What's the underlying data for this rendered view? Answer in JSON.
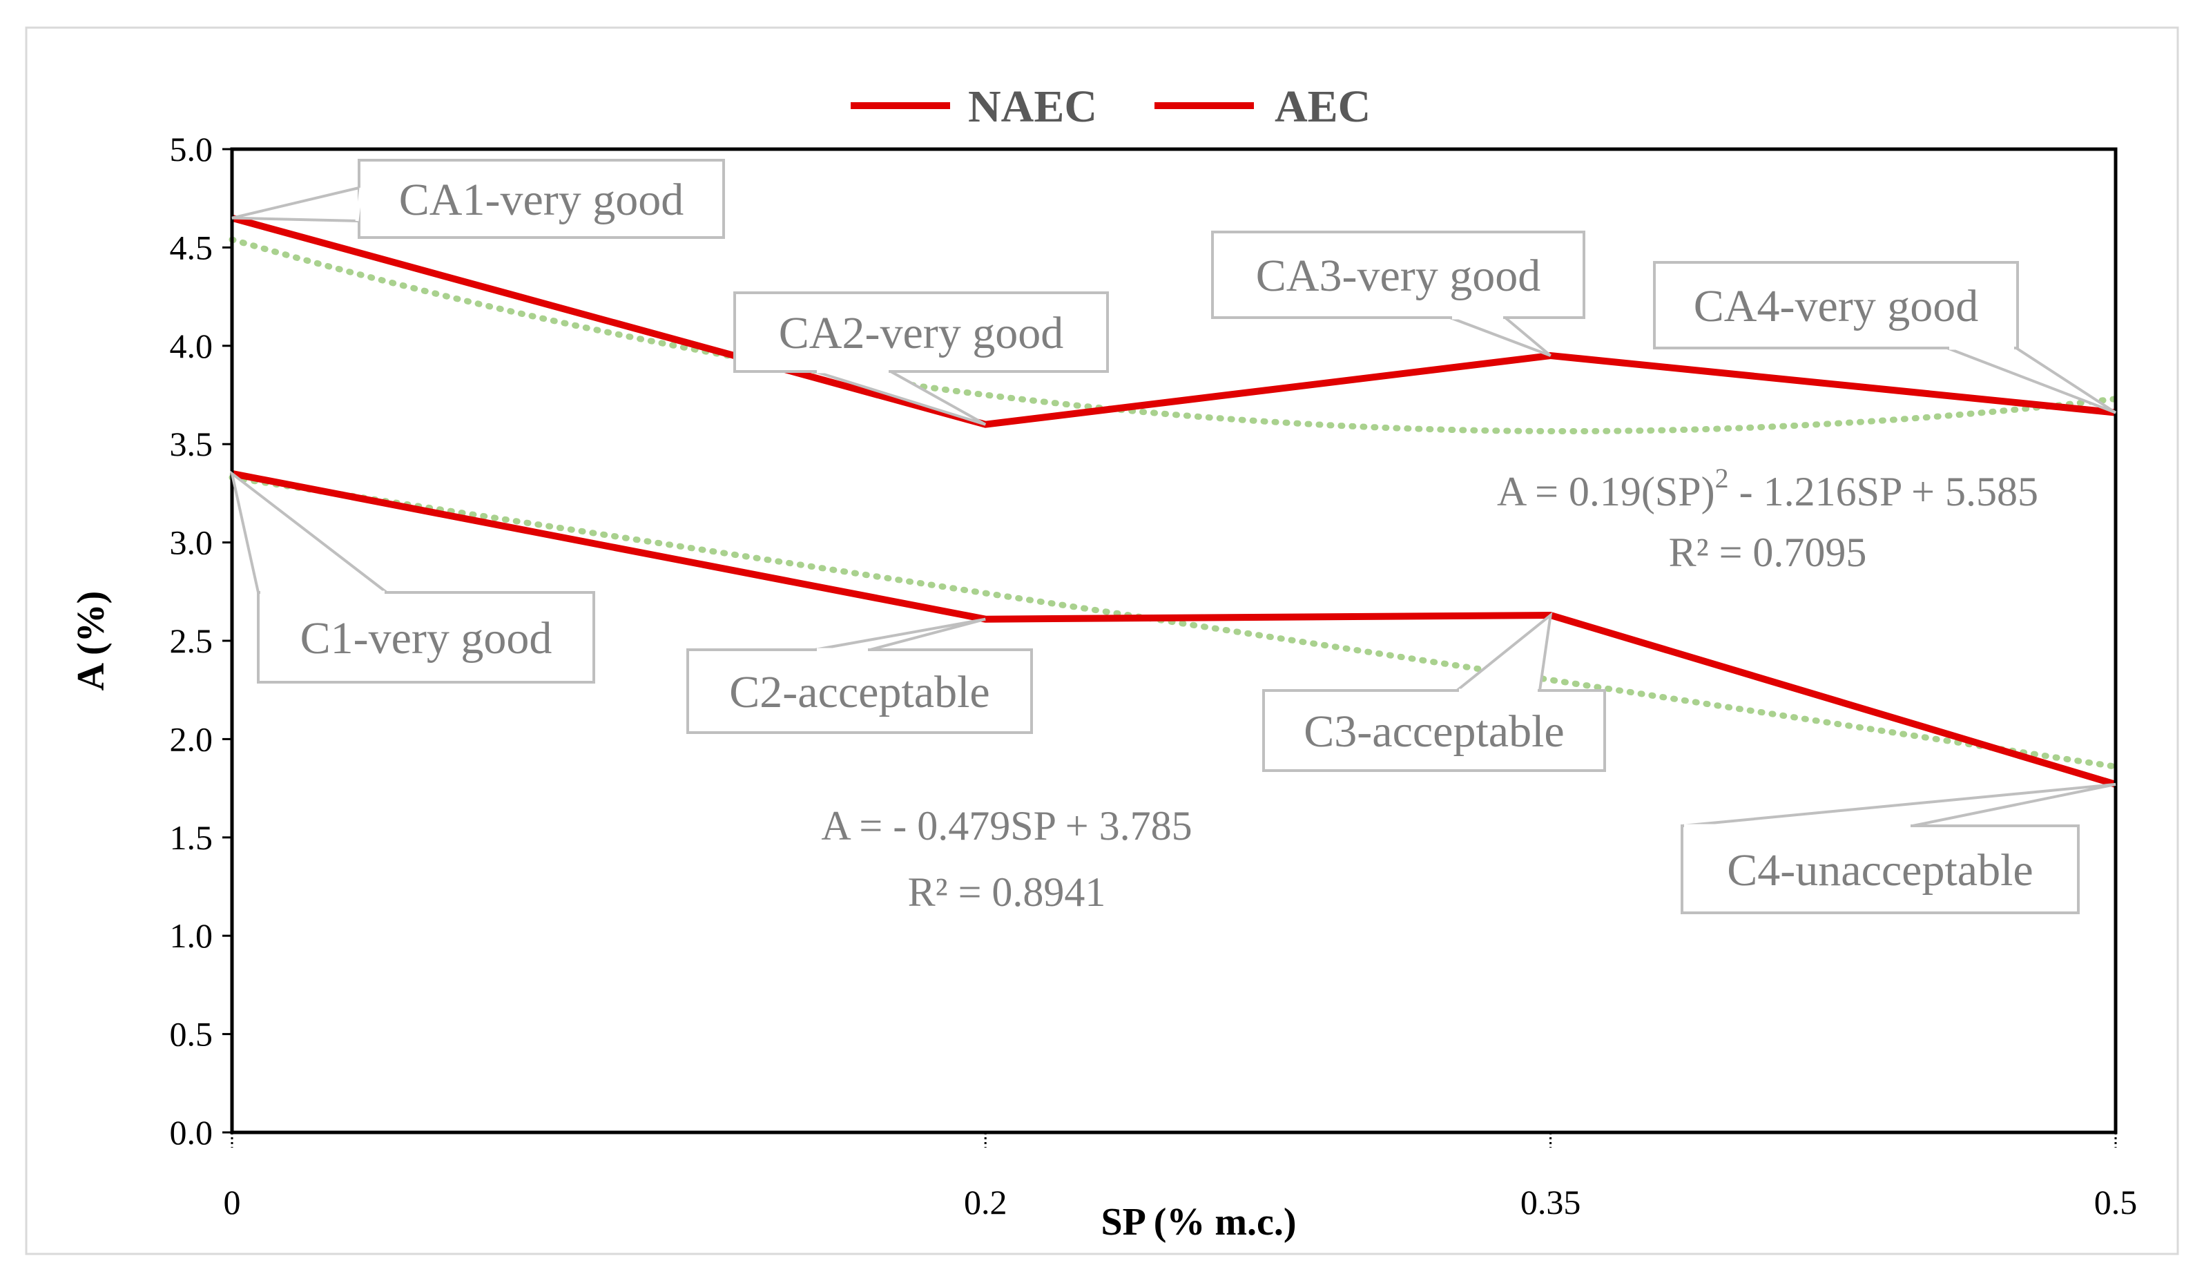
{
  "chart_data": {
    "type": "line",
    "title": "",
    "xlabel": "SP (% m.c.)",
    "ylabel": "A (%)",
    "categories": [
      "0",
      "0.2",
      "0.35",
      "0.5"
    ],
    "x": [
      0,
      0.2,
      0.35,
      0.5
    ],
    "ylim": [
      0,
      5
    ],
    "yticks": [
      "0.0",
      "0.5",
      "1.0",
      "1.5",
      "2.0",
      "2.5",
      "3.0",
      "3.5",
      "4.0",
      "4.5",
      "5.0"
    ],
    "legend_position": "top-center",
    "colors": {
      "series": "#e00000",
      "trend": "#a9d18e",
      "frame": "#000000",
      "callout": "#bfbfbf",
      "callout_text": "#7f7f7f"
    },
    "series": [
      {
        "name": "NAEC",
        "values": [
          3.35,
          2.61,
          2.63,
          1.77
        ],
        "labels": [
          "C1-very good",
          "C2-acceptable",
          "C3-acceptable",
          "C4-unacceptable"
        ],
        "trendline": {
          "type": "linear",
          "equation": "A = - 0.479SP + 3.785",
          "r2": "R² = 0.8941"
        }
      },
      {
        "name": "AEC",
        "values": [
          4.65,
          3.6,
          3.95,
          3.66
        ],
        "labels": [
          "CA1-very good",
          "CA2-very good",
          "CA3-very good",
          "CA4-very good"
        ],
        "trendline": {
          "type": "polynomial",
          "equation_base": "A = 0.19(SP)",
          "equation_exp": "2",
          "equation_rest": " - 1.216SP + 5.585",
          "r2": "R² = 0.7095"
        }
      }
    ]
  }
}
